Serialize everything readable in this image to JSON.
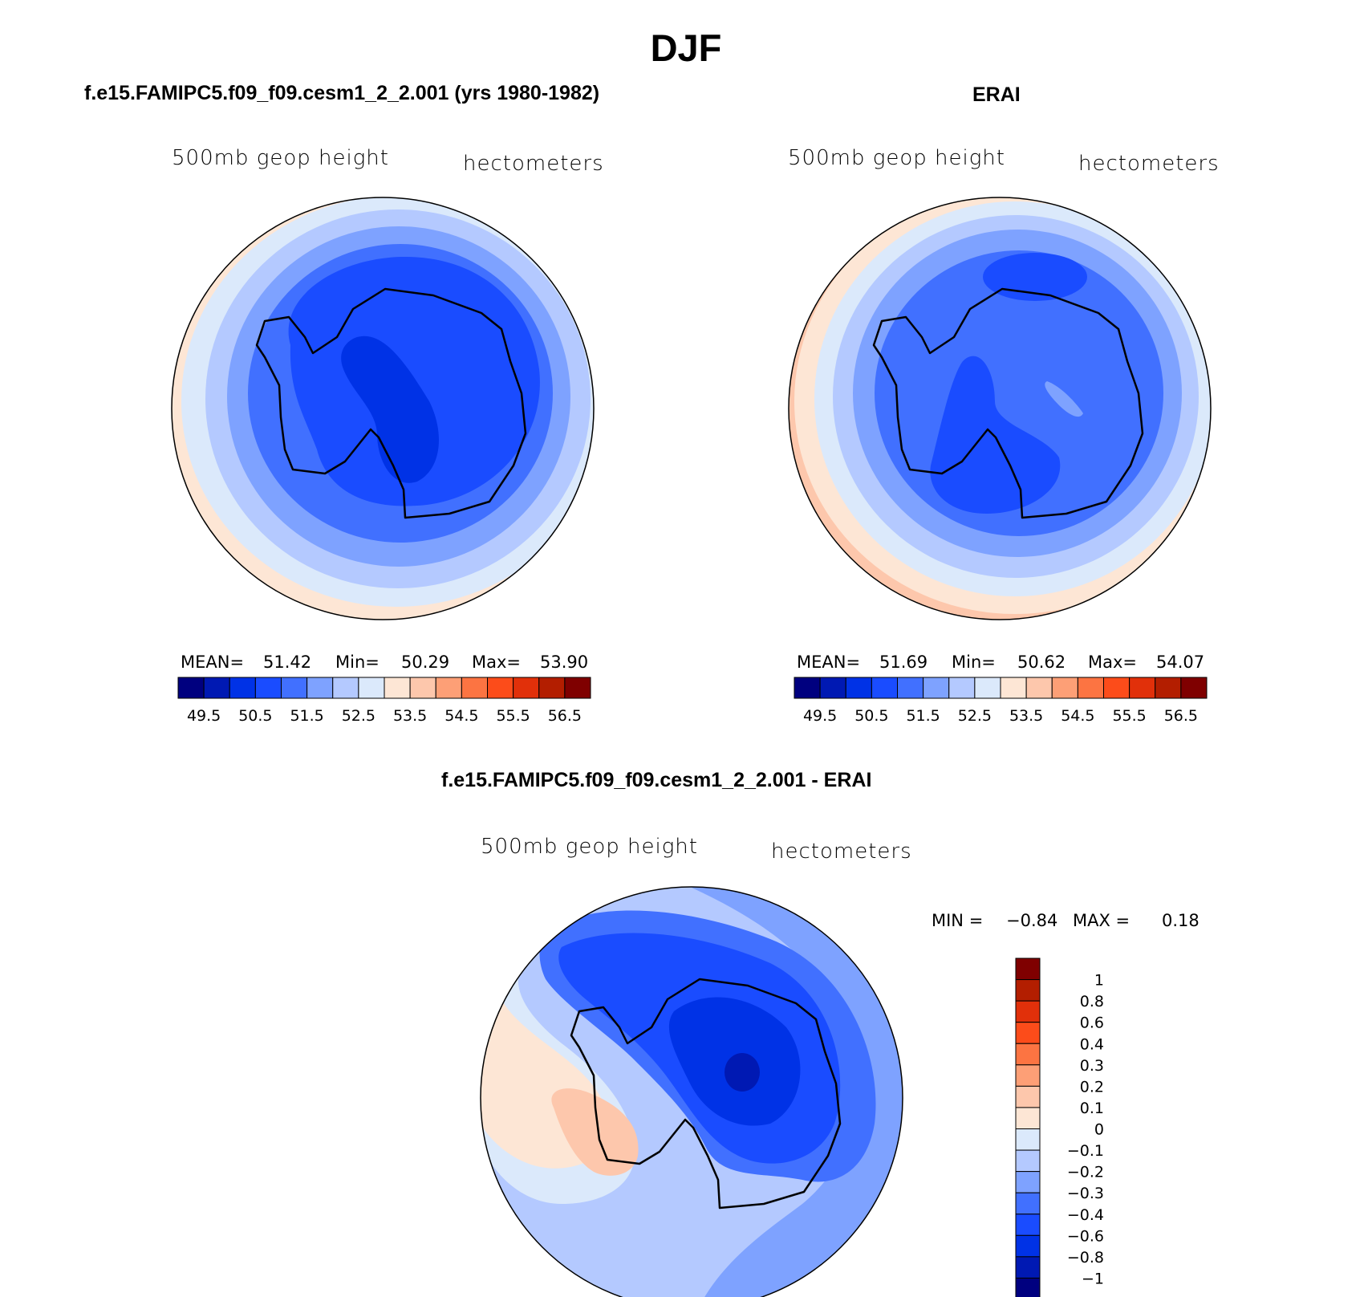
{
  "title": "DJF",
  "chart_data": [
    {
      "type": "heatmap",
      "projection": "south-polar-stereographic",
      "title": "f.e15.FAMIPC5.f09_f09.cesm1_2_2.001 (yrs 1980-1982)",
      "variable_label": "500mb geop height",
      "units_label": "hectometers",
      "stats": {
        "mean_label": "MEAN=",
        "mean": "51.42",
        "min_label": "Min=",
        "min": "50.29",
        "max_label": "Max=",
        "max": "53.90"
      },
      "levels": [
        "49.5",
        "50.5",
        "51.5",
        "52.5",
        "53.5",
        "54.5",
        "55.5",
        "56.5"
      ],
      "field_levels": [
        53.5,
        53.0,
        52.5,
        52.0,
        51.5,
        51.0,
        50.5
      ],
      "colorbar": "horizontal-bottom"
    },
    {
      "type": "heatmap",
      "projection": "south-polar-stereographic",
      "title": "ERAI",
      "variable_label": "500mb geop height",
      "units_label": "hectometers",
      "stats": {
        "mean_label": "MEAN=",
        "mean": "51.69",
        "min_label": "Min=",
        "min": "50.62",
        "max_label": "Max=",
        "max": "54.07"
      },
      "levels": [
        "49.5",
        "50.5",
        "51.5",
        "52.5",
        "53.5",
        "54.5",
        "55.5",
        "56.5"
      ],
      "field_levels": [
        54.0,
        53.5,
        53.0,
        52.5,
        52.0,
        51.5,
        51.0,
        50.5
      ],
      "colorbar": "horizontal-bottom"
    },
    {
      "type": "heatmap",
      "projection": "south-polar-stereographic",
      "title": "f.e15.FAMIPC5.f09_f09.cesm1_2_2.001 - ERAI",
      "variable_label": "500mb geop height",
      "units_label": "hectometers",
      "stats": {
        "min_label": "MIN =",
        "min": "−0.84",
        "max_label": "MAX =",
        "max": "0.18"
      },
      "levels": [
        "1",
        "0.8",
        "0.6",
        "0.4",
        "0.3",
        "0.2",
        "0.1",
        "0",
        "−0.1",
        "−0.2",
        "−0.3",
        "−0.4",
        "−0.6",
        "−0.8",
        "−1"
      ],
      "field_levels": [
        0.05,
        -0.05,
        -0.15,
        -0.25,
        -0.35,
        -0.5,
        -0.7
      ],
      "colorbar": "vertical-right"
    }
  ],
  "colors": {
    "abs_scale": [
      "#00007f",
      "#0019b3",
      "#0032e6",
      "#1a4cff",
      "#4170ff",
      "#7ea2ff",
      "#b4c9ff",
      "#dbe9fb",
      "#fde6d5",
      "#fdc7ac",
      "#fd9f76",
      "#fc7442",
      "#fc4c1a",
      "#e1300a",
      "#b31e00",
      "#7f0000"
    ],
    "diff_scale": [
      "#7f0000",
      "#b31e00",
      "#e1300a",
      "#fc4c1a",
      "#fc7442",
      "#fd9f76",
      "#fdc7ac",
      "#fde6d5",
      "#dbe9fb",
      "#b4c9ff",
      "#7ea2ff",
      "#4170ff",
      "#1a4cff",
      "#0032e6",
      "#0019b3",
      "#00007f"
    ]
  }
}
